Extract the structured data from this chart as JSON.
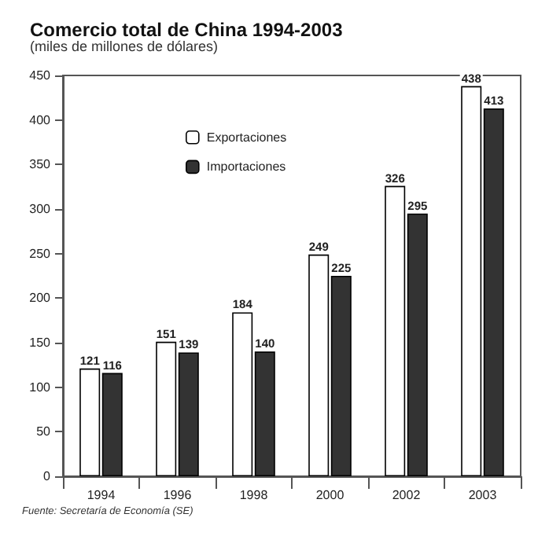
{
  "chart_data": {
    "type": "bar",
    "title": "Comercio total de China 1994-2003",
    "subtitle": "(miles de millones de dólares)",
    "annotations": [
      "Fuente: Secretaría de Economía (SE)"
    ],
    "categories": [
      "1994",
      "1996",
      "1998",
      "2000",
      "2002",
      "2003"
    ],
    "series": [
      {
        "name": "Exportaciones",
        "color": "#ffffff",
        "values": [
          121,
          151,
          184,
          249,
          326,
          438
        ]
      },
      {
        "name": "Importaciones",
        "color": "#333333",
        "values": [
          116,
          139,
          140,
          225,
          295,
          413
        ]
      }
    ],
    "ylim": [
      0,
      450
    ],
    "yticks": [
      0,
      50,
      100,
      150,
      200,
      250,
      300,
      350,
      400,
      450
    ],
    "grid": false,
    "legend": "top left",
    "data_labels": true
  }
}
